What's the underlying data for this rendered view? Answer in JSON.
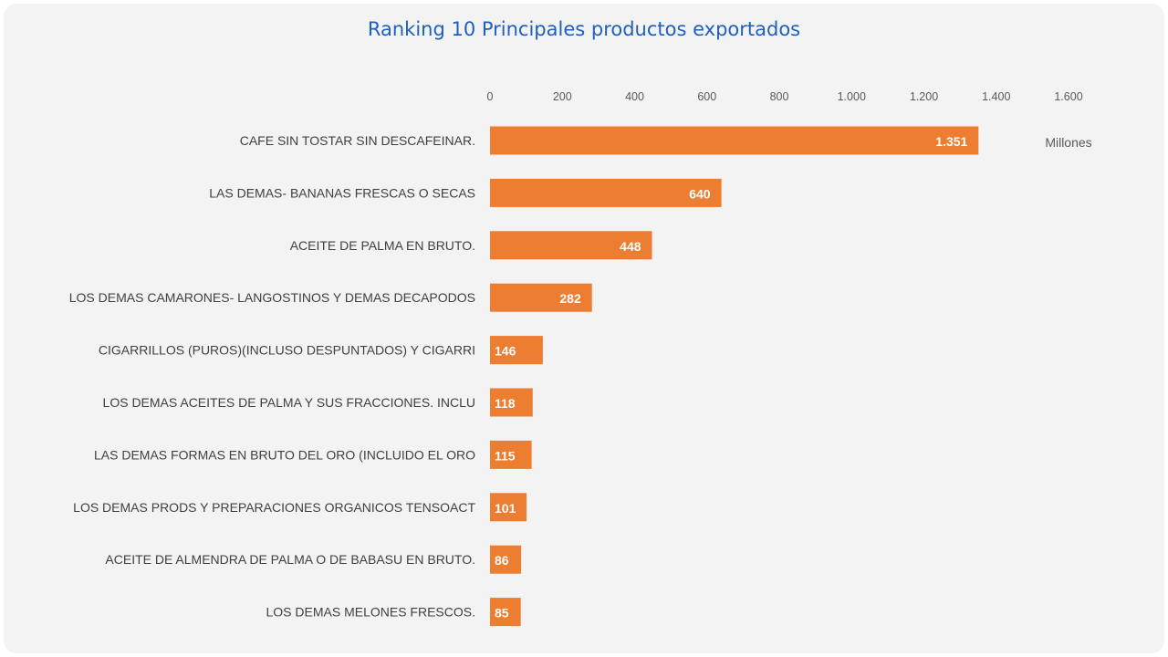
{
  "chart_data": {
    "type": "bar",
    "orientation": "horizontal",
    "title": "Ranking 10 Principales productos exportados",
    "unit_label": "Millones",
    "xlim": [
      0,
      1600
    ],
    "x_ticks": [
      0,
      200,
      400,
      600,
      800,
      1000,
      1200,
      1400,
      1600
    ],
    "x_tick_labels": [
      "0",
      "200",
      "400",
      "600",
      "800",
      "1.000",
      "1.200",
      "1.400",
      "1.600"
    ],
    "x_axis_position": "top",
    "grid": false,
    "bar_color": "#ed7d31",
    "categories": [
      "CAFE SIN TOSTAR SIN DESCAFEINAR.",
      "LAS DEMAS- BANANAS FRESCAS O SECAS",
      "ACEITE DE PALMA EN BRUTO.",
      "LOS DEMAS CAMARONES- LANGOSTINOS Y DEMAS DECAPODOS",
      "CIGARRILLOS (PUROS)(INCLUSO DESPUNTADOS) Y CIGARRI",
      "LOS DEMAS ACEITES DE PALMA Y SUS FRACCIONES. INCLU",
      "LAS DEMAS FORMAS EN BRUTO DEL ORO (INCLUIDO EL ORO",
      "LOS DEMAS PRODS Y PREPARACIONES ORGANICOS TENSOACT",
      "ACEITE DE ALMENDRA DE PALMA O DE BABASU EN BRUTO.",
      "LOS DEMAS MELONES FRESCOS."
    ],
    "values": [
      1351,
      640,
      448,
      282,
      146,
      118,
      115,
      101,
      86,
      85
    ],
    "value_labels": [
      "1.351",
      "640",
      "448",
      "282",
      "146",
      "118",
      "115",
      "101",
      "86",
      "85"
    ]
  }
}
